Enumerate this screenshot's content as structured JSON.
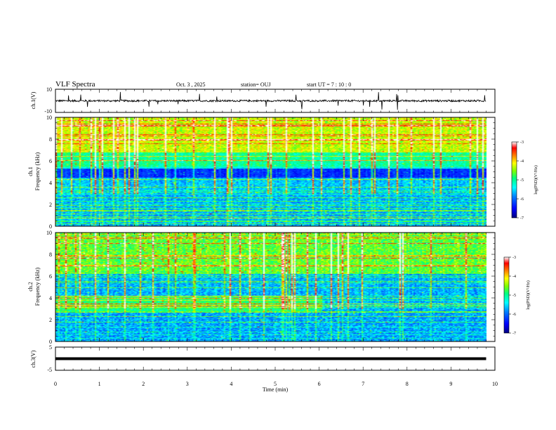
{
  "header": {
    "title": "VLF Spectra",
    "date": "Oct. 3  , 2025",
    "station": "station= OUJ",
    "start": "start  UT =   7 : 10 : 0"
  },
  "colors": {
    "waveform": "#000000",
    "colorbar_stops": [
      "#000080",
      "#0000ff",
      "#0080ff",
      "#00ffff",
      "#00ff80",
      "#80ff00",
      "#ffff00",
      "#ff8000",
      "#ff0000",
      "#ffffff"
    ]
  },
  "chart_data": [
    {
      "type": "line",
      "panel": "ch1-waveform",
      "ylabel": "ch.1(V)",
      "ylim": [
        -10,
        10
      ],
      "yticks": [
        "10",
        "-10"
      ],
      "x_range_min": [
        0,
        9.8
      ],
      "series": [
        {
          "values_baseline": 0.0
        }
      ]
    },
    {
      "type": "heatmap",
      "panel": "ch1-spectrogram",
      "ylabel": "ch.1\nFrequency  (kHz)",
      "ylim": [
        0,
        10
      ],
      "yticks": [
        "0",
        "2",
        "4",
        "6",
        "8",
        "10"
      ],
      "x_range_min": [
        0,
        9.8
      ],
      "colorbar": {
        "label": "log(PSD)(V²/Hz)",
        "range": [
          -7,
          -3
        ],
        "ticks": [
          "-3",
          "-4",
          "-5",
          "-6",
          "-7"
        ]
      }
    },
    {
      "type": "heatmap",
      "panel": "ch2-spectrogram",
      "ylabel": "ch.2\nFrequency  (kHz)",
      "ylim": [
        0,
        10
      ],
      "yticks": [
        "0",
        "2",
        "4",
        "6",
        "8",
        "10"
      ],
      "x_range_min": [
        0,
        9.8
      ],
      "colorbar": {
        "label": "log(PSD)(V²/Hz)",
        "range": [
          -7,
          -3
        ],
        "ticks": [
          "-3",
          "-4",
          "-5",
          "-6",
          "-7"
        ]
      }
    },
    {
      "type": "line",
      "panel": "ch3-waveform",
      "ylabel": "ch.3(V)",
      "ylim": [
        -5,
        5
      ],
      "yticks": [
        "5",
        "-5"
      ],
      "x_range_min": [
        0,
        9.8
      ],
      "series": [
        {
          "values_baseline": 0.0
        }
      ]
    }
  ],
  "xaxis": {
    "label": "Time  (min)",
    "range": [
      0,
      10
    ],
    "ticks": [
      "0",
      "1",
      "2",
      "3",
      "4",
      "5",
      "6",
      "7",
      "8",
      "9",
      "10"
    ]
  },
  "labels": {
    "ch1v": "ch.1(V)",
    "ch1freq_a": "ch.1",
    "ch1freq_b": "Frequency  (kHz)",
    "ch2freq_a": "ch.2",
    "ch2freq_b": "Frequency  (kHz)",
    "ch3v": "ch.3(V)",
    "cbar": "log(PSD)(V²/Hz)"
  }
}
